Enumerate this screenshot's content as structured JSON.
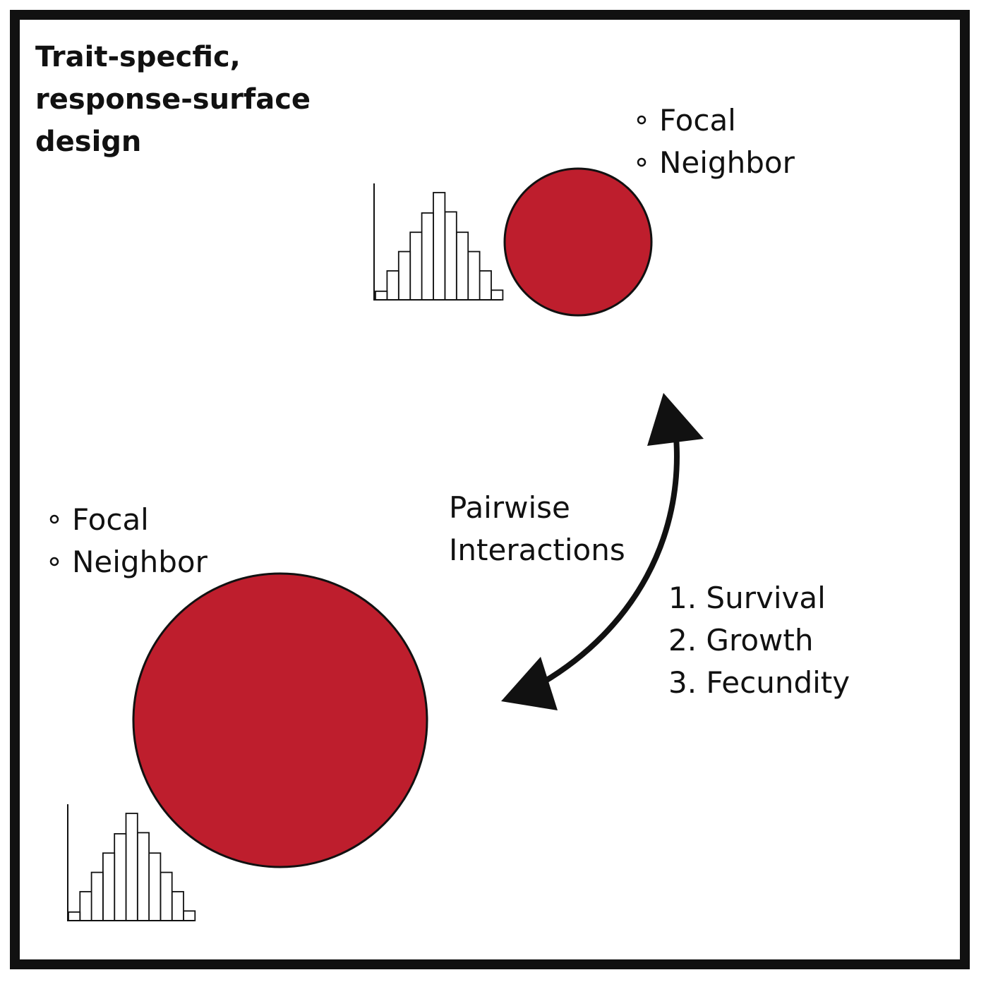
{
  "title": {
    "line1": "Trait-specfic,",
    "line2": "response-surface",
    "line3": "design"
  },
  "top_group": {
    "legend": [
      "Focal",
      "Neighbor"
    ],
    "circle_color": "#be1e2d"
  },
  "bottom_group": {
    "legend": [
      "Focal",
      "Neighbor"
    ],
    "circle_color": "#be1e2d"
  },
  "interaction": {
    "line1": "Pairwise",
    "line2": "Interactions"
  },
  "outcomes": [
    "1. Survival",
    "2. Growth",
    "3. Fecundity"
  ],
  "histogram_relative_heights": [
    0.08,
    0.27,
    0.45,
    0.63,
    0.81,
    1.0,
    0.82,
    0.63,
    0.45,
    0.27,
    0.09
  ],
  "colors": {
    "border": "#111111",
    "circle_fill": "#be1e2d",
    "arrow": "#111111"
  }
}
